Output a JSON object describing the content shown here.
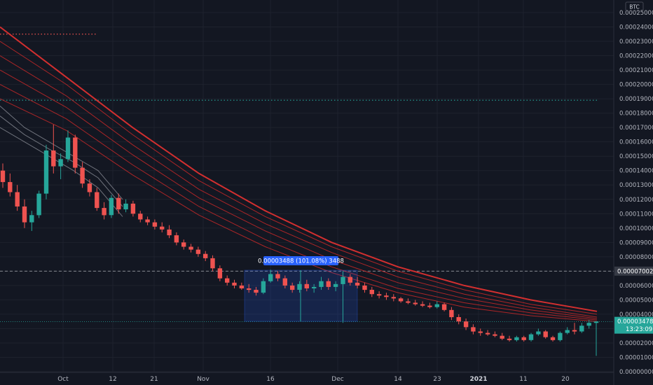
{
  "chart_data": {
    "type": "candlestick",
    "currency_label": "BTC",
    "y_ticks": [
      "0.00025000",
      "0.00024000",
      "0.00023000",
      "0.00022000",
      "0.00021000",
      "0.00020000",
      "0.00019000",
      "0.00018000",
      "0.00017000",
      "0.00016000",
      "0.00015000",
      "0.00014000",
      "0.00013000",
      "0.00012000",
      "0.00011000",
      "0.00010000",
      "0.00009000",
      "0.00008000",
      "0.00007000",
      "0.00006000",
      "0.00005000",
      "0.00004000",
      "0.00003000",
      "0.00002000",
      "0.00001000",
      "0.00000000"
    ],
    "ylim": [
      0,
      0.00025
    ],
    "x_ticks": [
      {
        "label": "Oct",
        "bold": false
      },
      {
        "label": "12",
        "bold": false
      },
      {
        "label": "21",
        "bold": false
      },
      {
        "label": "Nov",
        "bold": false
      },
      {
        "label": "16",
        "bold": false
      },
      {
        "label": "Dec",
        "bold": false
      },
      {
        "label": "14",
        "bold": false
      },
      {
        "label": "23",
        "bold": false
      },
      {
        "label": "2021",
        "bold": true
      },
      {
        "label": "11",
        "bold": false
      },
      {
        "label": "20",
        "bold": false
      }
    ],
    "price_labels": {
      "crosshair_price": "0.00007002",
      "last_price": "0.00003478",
      "countdown": "13:23:09"
    },
    "measure_tooltip": "0.00003488 (101.08%) 3488",
    "horizontal_levels": {
      "red_dotted": 0.000235,
      "green_dotted": 0.000189,
      "crosshair": 7.002e-05,
      "last_price": 3.478e-05
    },
    "colors": {
      "background": "#131722",
      "up": "#26a69a",
      "down": "#ef5350",
      "ribbon": "#c62828",
      "ribbon_gray": "#9598a1",
      "tooltip": "#2962ff",
      "measure_box": "#2962ff"
    },
    "candles": [
      [
        0.00014,
        0.000145,
        0.000128,
        0.000132
      ],
      [
        0.000132,
        0.000138,
        0.000122,
        0.000125
      ],
      [
        0.000125,
        0.00013,
        0.000112,
        0.000115
      ],
      [
        0.000115,
        0.00012,
        0.0001,
        0.000104
      ],
      [
        0.000104,
        0.000112,
        9.8e-05,
        0.000109
      ],
      [
        0.000109,
        0.000126,
        0.000107,
        0.000124
      ],
      [
        0.000124,
        0.000158,
        0.00012,
        0.000154
      ],
      [
        0.000154,
        0.000172,
        0.000138,
        0.000143
      ],
      [
        0.000143,
        0.000152,
        0.000134,
        0.000148
      ],
      [
        0.000148,
        0.000168,
        0.000146,
        0.000163
      ],
      [
        0.000163,
        0.000165,
        0.000138,
        0.000142
      ],
      [
        0.000142,
        0.000146,
        0.000128,
        0.000131
      ],
      [
        0.000131,
        0.000134,
        0.000122,
        0.000125
      ],
      [
        0.000125,
        0.000128,
        0.000112,
        0.000114
      ],
      [
        0.000114,
        0.000118,
        0.000106,
        0.000109
      ],
      [
        0.000109,
        0.000123,
        0.000107,
        0.000121
      ],
      [
        0.000121,
        0.000124,
        0.00011,
        0.000113
      ],
      [
        0.000113,
        0.00012,
        0.000111,
        0.000117
      ],
      [
        0.000117,
        0.000119,
        0.000108,
        0.00011
      ],
      [
        0.00011,
        0.000112,
        0.000104,
        0.000106
      ],
      [
        0.000106,
        0.000108,
        0.000102,
        0.000104
      ],
      [
        0.000104,
        0.000106,
        9.9e-05,
        0.000101
      ],
      [
        0.000101,
        0.000104,
        9.7e-05,
        9.9e-05
      ],
      [
        9.9e-05,
        0.000102,
        9.3e-05,
        9.5e-05
      ],
      [
        9.5e-05,
        9.7e-05,
        8.8e-05,
        9e-05
      ],
      [
        9e-05,
        9.2e-05,
        8.5e-05,
        8.7e-05
      ],
      [
        8.7e-05,
        8.9e-05,
        8.3e-05,
        8.5e-05
      ],
      [
        8.5e-05,
        8.7e-05,
        8e-05,
        8.2e-05
      ],
      [
        8.2e-05,
        8.4e-05,
        7.7e-05,
        7.9e-05
      ],
      [
        7.9e-05,
        8.1e-05,
        7e-05,
        7.2e-05
      ],
      [
        7.2e-05,
        7.4e-05,
        6.3e-05,
        6.5e-05
      ],
      [
        6.5e-05,
        6.7e-05,
        6e-05,
        6.2e-05
      ],
      [
        6.2e-05,
        6.4e-05,
        5.8e-05,
        6e-05
      ],
      [
        6e-05,
        6.2e-05,
        5.7e-05,
        5.8e-05
      ],
      [
        5.8e-05,
        6.1e-05,
        5.5e-05,
        5.7e-05
      ],
      [
        5.7e-05,
        5.9e-05,
        5.3e-05,
        5.5e-05
      ],
      [
        5.5e-05,
        6.5e-05,
        5.4e-05,
        6.3e-05
      ],
      [
        6.3e-05,
        7.1e-05,
        6.2e-05,
        6.8e-05
      ],
      [
        6.8e-05,
        7e-05,
        6.3e-05,
        6.5e-05
      ],
      [
        6.5e-05,
        6.7e-05,
        5.8e-05,
        6e-05
      ],
      [
        6e-05,
        6.2e-05,
        5.5e-05,
        5.7e-05
      ],
      [
        5.7e-05,
        6.3e-05,
        5.5e-05,
        6.1e-05
      ],
      [
        6.1e-05,
        6.4e-05,
        5.6e-05,
        5.8e-05
      ],
      [
        5.8e-05,
        6.1e-05,
        5.5e-05,
        5.9e-05
      ],
      [
        5.9e-05,
        6.6e-05,
        5.7e-05,
        6.3e-05
      ],
      [
        6.3e-05,
        6.5e-05,
        5.7e-05,
        5.9e-05
      ],
      [
        5.9e-05,
        6.3e-05,
        5.6e-05,
        6.1e-05
      ],
      [
        6.1e-05,
        7e-05,
        3.4e-05,
        6.6e-05
      ],
      [
        6.6e-05,
        6.8e-05,
        6e-05,
        6.2e-05
      ],
      [
        6.2e-05,
        6.6e-05,
        5.8e-05,
        6e-05
      ],
      [
        6e-05,
        6.2e-05,
        5.5e-05,
        5.7e-05
      ],
      [
        5.7e-05,
        5.9e-05,
        5.2e-05,
        5.4e-05
      ],
      [
        5.4e-05,
        5.6e-05,
        5.1e-05,
        5.3e-05
      ],
      [
        5.3e-05,
        5.5e-05,
        5e-05,
        5.2e-05
      ],
      [
        5.2e-05,
        5.4e-05,
        4.9e-05,
        5.1e-05
      ],
      [
        5.1e-05,
        5.2e-05,
        4.8e-05,
        4.9e-05
      ],
      [
        4.9e-05,
        5.1e-05,
        4.7e-05,
        4.8e-05
      ],
      [
        4.8e-05,
        5e-05,
        4.6e-05,
        4.7e-05
      ],
      [
        4.7e-05,
        4.9e-05,
        4.5e-05,
        4.6e-05
      ],
      [
        4.6e-05,
        4.8e-05,
        4.4e-05,
        4.5e-05
      ],
      [
        4.5e-05,
        4.9e-05,
        4.4e-05,
        4.7e-05
      ],
      [
        4.7e-05,
        4.8e-05,
        4.2e-05,
        4.3e-05
      ],
      [
        4.3e-05,
        4.5e-05,
        3.6e-05,
        3.8e-05
      ],
      [
        3.8e-05,
        4e-05,
        3.3e-05,
        3.5e-05
      ],
      [
        3.5e-05,
        3.7e-05,
        2.9e-05,
        3.1e-05
      ],
      [
        3.1e-05,
        3.3e-05,
        2.6e-05,
        2.8e-05
      ],
      [
        2.8e-05,
        3e-05,
        2.5e-05,
        2.7e-05
      ],
      [
        2.7e-05,
        2.9e-05,
        2.5e-05,
        2.6e-05
      ],
      [
        2.6e-05,
        2.8e-05,
        2.4e-05,
        2.5e-05
      ],
      [
        2.5e-05,
        2.7e-05,
        2.2e-05,
        2.3e-05
      ],
      [
        2.3e-05,
        2.5e-05,
        2.1e-05,
        2.2e-05
      ],
      [
        2.2e-05,
        2.5e-05,
        2.1e-05,
        2.4e-05
      ],
      [
        2.4e-05,
        2.5e-05,
        2.1e-05,
        2.2e-05
      ],
      [
        2.2e-05,
        2.7e-05,
        2.1e-05,
        2.6e-05
      ],
      [
        2.6e-05,
        3e-05,
        2.5e-05,
        2.8e-05
      ],
      [
        2.8e-05,
        2.9e-05,
        2.3e-05,
        2.4e-05
      ],
      [
        2.4e-05,
        2.5e-05,
        2.1e-05,
        2.2e-05
      ],
      [
        2.2e-05,
        2.8e-05,
        2.1e-05,
        2.7e-05
      ],
      [
        2.7e-05,
        3.1e-05,
        2.6e-05,
        2.9e-05
      ],
      [
        2.9e-05,
        3.4e-05,
        2.6e-05,
        2.8e-05
      ],
      [
        2.8e-05,
        3.4e-05,
        2.7e-05,
        3.2e-05
      ],
      [
        3.2e-05,
        3.6e-05,
        3e-05,
        3.4e-05
      ],
      [
        3.4e-05,
        3.5e-05,
        1.1e-05,
        3.5e-05
      ]
    ],
    "ribbon_lines": [
      [
        0.00024,
        0.000205,
        0.00017,
        0.000138,
        0.000112,
        9e-05,
        7.3e-05,
        6e-05,
        5e-05,
        4.2e-05
      ],
      [
        0.00023,
        0.0002,
        0.000165,
        0.000133,
        0.000108,
        8.7e-05,
        7e-05,
        5.7e-05,
        4.7e-05,
        4e-05
      ],
      [
        0.00022,
        0.000192,
        0.000158,
        0.000127,
        0.000103,
        8.3e-05,
        6.6e-05,
        5.4e-05,
        4.5e-05,
        3.8e-05
      ],
      [
        0.00021,
        0.000184,
        0.000151,
        0.000121,
        9.8e-05,
        7.8e-05,
        6.2e-05,
        5.1e-05,
        4.3e-05,
        3.7e-05
      ],
      [
        0.0002,
        0.000176,
        0.000144,
        0.000115,
        9.2e-05,
        7.3e-05,
        5.8e-05,
        4.8e-05,
        4.1e-05,
        3.6e-05
      ],
      [
        0.00019,
        0.000168,
        0.000137,
        0.000109,
        8.7e-05,
        6.9e-05,
        5.5e-05,
        4.5e-05,
        3.9e-05,
        3.5e-05
      ]
    ]
  }
}
